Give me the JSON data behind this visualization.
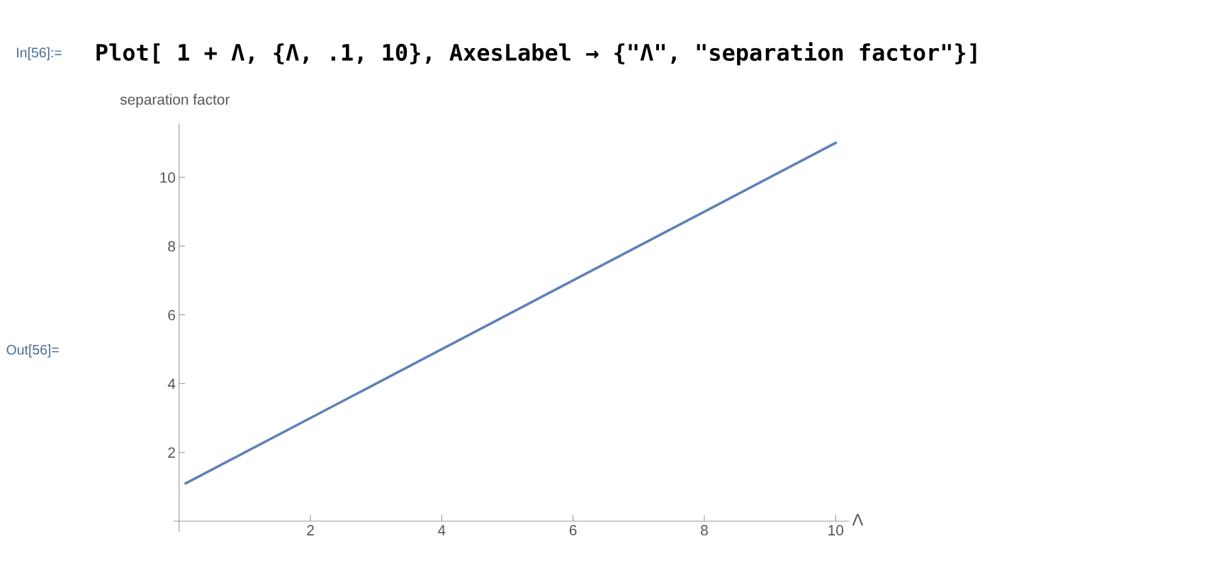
{
  "chart_data": {
    "type": "line",
    "xlabel": "Λ",
    "ylabel": "separation factor",
    "x": [
      0.1,
      10
    ],
    "series": [
      {
        "color": "#5e81b5",
        "values": [
          1.1,
          11
        ]
      }
    ],
    "xlim": [
      -0.08,
      10.2
    ],
    "ylim": [
      -0.3,
      11.55
    ],
    "xticks": [
      2,
      4,
      6,
      8,
      10
    ],
    "yticks": [
      2,
      4,
      6,
      8,
      10
    ],
    "grid": false,
    "legend": false,
    "marker": "none",
    "line_style": "solid",
    "annotations": [
      "In[56]:=",
      "Plot[ 1 + Λ, {Λ, .1, 10}, AxesLabel → {\"Λ\", \"separation factor\"}]",
      "Out[56]="
    ]
  }
}
